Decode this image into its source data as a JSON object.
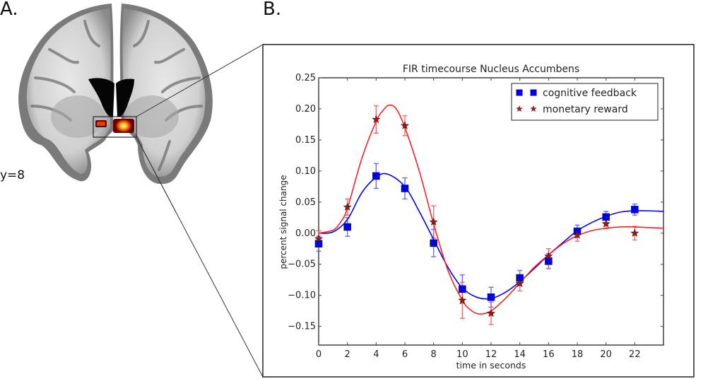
{
  "panels": {
    "a_label": "A.",
    "b_label": "B.",
    "slice_label": "y=8"
  },
  "colors": {
    "cognitive_feedback": "#0000ff",
    "monetary_reward": "#ff2020",
    "monetary_marker": "#b01010"
  },
  "chart_data": {
    "type": "line",
    "title": "FIR timecourse Nucleus Accumbens",
    "xlabel": "time in seconds",
    "ylabel": "percent signal change",
    "xlim": [
      0,
      24
    ],
    "ylim": [
      -0.18,
      0.25
    ],
    "xticks": [
      0,
      2,
      4,
      6,
      8,
      10,
      12,
      14,
      16,
      18,
      20,
      22
    ],
    "yticks": [
      -0.15,
      -0.1,
      -0.05,
      0.0,
      0.05,
      0.1,
      0.15,
      0.2,
      0.25
    ],
    "ytick_labels": [
      "−0.15",
      "−0.10",
      "−0.05",
      "0.00",
      "0.05",
      "0.10",
      "0.15",
      "0.20",
      "0.25"
    ],
    "grid": false,
    "legend_position": "upper right",
    "x": [
      0,
      2,
      4,
      6,
      8,
      10,
      12,
      14,
      16,
      18,
      20,
      22
    ],
    "series": [
      {
        "name": "cognitive feedback",
        "marker": "square",
        "color": "#0000ff",
        "values": [
          -0.017,
          0.01,
          0.092,
          0.072,
          -0.016,
          -0.09,
          -0.103,
          -0.072,
          -0.045,
          0.003,
          0.026,
          0.038
        ],
        "errors": [
          0.012,
          0.015,
          0.02,
          0.017,
          0.022,
          0.023,
          0.016,
          0.012,
          0.012,
          0.01,
          0.009,
          0.009
        ],
        "fit": [
          [
            0,
            0.0
          ],
          [
            1,
            0.002
          ],
          [
            2,
            0.022
          ],
          [
            3,
            0.065
          ],
          [
            4,
            0.09
          ],
          [
            4.8,
            0.095
          ],
          [
            6,
            0.075
          ],
          [
            7,
            0.035
          ],
          [
            8,
            -0.01
          ],
          [
            9,
            -0.055
          ],
          [
            10,
            -0.088
          ],
          [
            11,
            -0.103
          ],
          [
            12,
            -0.105
          ],
          [
            13,
            -0.095
          ],
          [
            14,
            -0.078
          ],
          [
            15,
            -0.057
          ],
          [
            16,
            -0.035
          ],
          [
            17,
            -0.015
          ],
          [
            18,
            0.004
          ],
          [
            19,
            0.017
          ],
          [
            20,
            0.027
          ],
          [
            21,
            0.034
          ],
          [
            22,
            0.036
          ],
          [
            23,
            0.036
          ],
          [
            24,
            0.035
          ]
        ]
      },
      {
        "name": "monetary reward",
        "marker": "star",
        "color": "#ff2020",
        "values": [
          -0.009,
          0.042,
          0.183,
          0.173,
          0.018,
          -0.108,
          -0.129,
          -0.081,
          -0.037,
          -0.003,
          0.015,
          0.0
        ],
        "errors": [
          0.013,
          0.013,
          0.022,
          0.016,
          0.026,
          0.029,
          0.018,
          0.012,
          0.012,
          0.01,
          0.008,
          0.011
        ],
        "fit": [
          [
            0,
            0.0
          ],
          [
            1,
            0.005
          ],
          [
            1.5,
            0.017
          ],
          [
            2,
            0.04
          ],
          [
            3,
            0.12
          ],
          [
            4,
            0.18
          ],
          [
            4.5,
            0.198
          ],
          [
            4.9,
            0.206
          ],
          [
            5.4,
            0.2
          ],
          [
            6,
            0.17
          ],
          [
            7,
            0.1
          ],
          [
            8,
            0.015
          ],
          [
            9,
            -0.06
          ],
          [
            10,
            -0.108
          ],
          [
            10.6,
            -0.124
          ],
          [
            11.2,
            -0.13
          ],
          [
            12,
            -0.125
          ],
          [
            13,
            -0.105
          ],
          [
            14,
            -0.08
          ],
          [
            15,
            -0.055
          ],
          [
            16,
            -0.035
          ],
          [
            17,
            -0.017
          ],
          [
            18,
            -0.004
          ],
          [
            19,
            0.004
          ],
          [
            20,
            0.008
          ],
          [
            21,
            0.01
          ],
          [
            22,
            0.01
          ],
          [
            23,
            0.009
          ],
          [
            24,
            0.008
          ]
        ]
      }
    ]
  }
}
